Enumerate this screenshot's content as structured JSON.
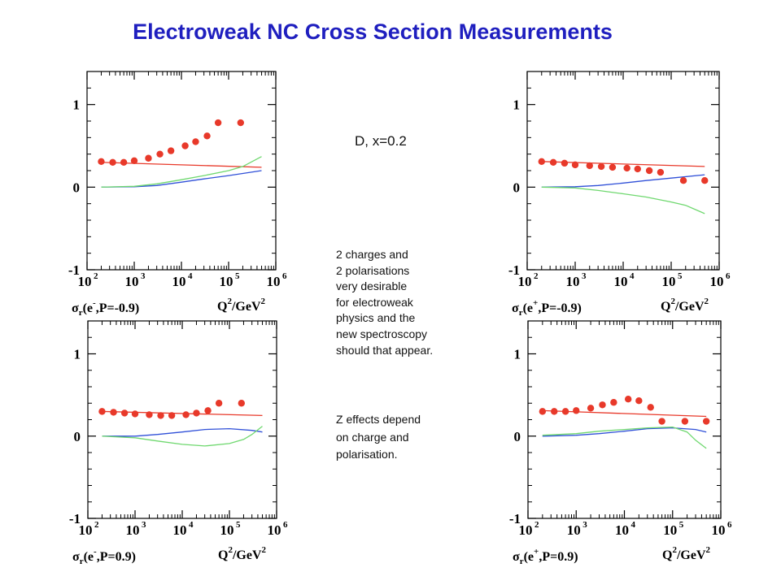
{
  "page": {
    "title": "Electroweak NC Cross Section Measurements",
    "title_color": "#1f1fbf",
    "subtitle": "D, x=0.2",
    "note1_lines": [
      "2 charges and",
      "2 polarisations",
      "very desirable",
      "for electroweak",
      "physics and the",
      "new spectroscopy",
      "should that appear."
    ],
    "note2_lines": [
      "Z effects depend",
      "on  charge and",
      "polarisation."
    ]
  },
  "colors": {
    "points": "#e8392a",
    "red_line": "#e8392a",
    "blue_line": "#3050d8",
    "green_line": "#6fd86f"
  },
  "chart_data": [
    {
      "type": "scatter",
      "panel": "top-left",
      "ylabel_sigma": "σ",
      "ylabel_sub": "r",
      "ylabel_lepton": "e",
      "ylabel_charge": "-",
      "ylabel_rest": ",P=-0.9)",
      "xlabel_q": "Q",
      "xlabel_sup": "2",
      "xlabel_rest": "/GeV",
      "x_scale": "log",
      "xlim": [
        100,
        1000000
      ],
      "ylim": [
        -1,
        1.4
      ],
      "x_ticks": [
        {
          "base": "10",
          "exp": "2"
        },
        {
          "base": "10",
          "exp": "3"
        },
        {
          "base": "10",
          "exp": "4"
        },
        {
          "base": "10",
          "exp": "5"
        },
        {
          "base": "10",
          "exp": "6"
        }
      ],
      "y_ticks": [
        "1",
        "0",
        "-1"
      ],
      "points": {
        "x": [
          200,
          350,
          600,
          1000,
          2000,
          3500,
          6000,
          12000,
          20000,
          35000,
          60000,
          180000
        ],
        "y": [
          0.31,
          0.3,
          0.3,
          0.32,
          0.35,
          0.4,
          0.44,
          0.5,
          0.55,
          0.62,
          0.78,
          0.78
        ]
      },
      "series": [
        {
          "color": "red",
          "x": [
            200,
            500000
          ],
          "y": [
            0.3,
            0.24
          ]
        },
        {
          "color": "blue",
          "x": [
            200,
            1000,
            3000,
            10000,
            30000,
            100000,
            500000
          ],
          "y": [
            0.0,
            0.005,
            0.02,
            0.06,
            0.1,
            0.14,
            0.2
          ]
        },
        {
          "color": "green",
          "x": [
            200,
            1000,
            3000,
            10000,
            30000,
            100000,
            200000,
            500000
          ],
          "y": [
            0.0,
            0.01,
            0.04,
            0.09,
            0.14,
            0.2,
            0.25,
            0.37
          ]
        }
      ]
    },
    {
      "type": "scatter",
      "panel": "top-right",
      "ylabel_sigma": "σ",
      "ylabel_sub": "r",
      "ylabel_lepton": "e",
      "ylabel_charge": "+",
      "ylabel_rest": ",P=-0.9)",
      "xlabel_q": "Q",
      "xlabel_sup": "2",
      "xlabel_rest": "/GeV",
      "x_scale": "log",
      "xlim": [
        100,
        1000000
      ],
      "ylim": [
        -1,
        1.4
      ],
      "x_ticks": [
        {
          "base": "10",
          "exp": "2"
        },
        {
          "base": "10",
          "exp": "3"
        },
        {
          "base": "10",
          "exp": "4"
        },
        {
          "base": "10",
          "exp": "5"
        },
        {
          "base": "10",
          "exp": "6"
        }
      ],
      "y_ticks": [
        "1",
        "0",
        "-1"
      ],
      "points": {
        "x": [
          200,
          350,
          600,
          1000,
          2000,
          3500,
          6000,
          12000,
          20000,
          35000,
          60000,
          180000,
          500000
        ],
        "y": [
          0.31,
          0.3,
          0.29,
          0.27,
          0.26,
          0.25,
          0.24,
          0.23,
          0.22,
          0.2,
          0.18,
          0.08,
          0.08
        ]
      },
      "series": [
        {
          "color": "red",
          "x": [
            200,
            500000
          ],
          "y": [
            0.31,
            0.25
          ]
        },
        {
          "color": "blue",
          "x": [
            200,
            1000,
            3000,
            10000,
            30000,
            100000,
            500000
          ],
          "y": [
            0.0,
            0.005,
            0.02,
            0.05,
            0.08,
            0.11,
            0.15
          ]
        },
        {
          "color": "green",
          "x": [
            200,
            1000,
            3000,
            10000,
            30000,
            100000,
            200000,
            500000
          ],
          "y": [
            0.0,
            -0.01,
            -0.04,
            -0.08,
            -0.12,
            -0.18,
            -0.22,
            -0.32
          ]
        }
      ]
    },
    {
      "type": "scatter",
      "panel": "bottom-left",
      "ylabel_sigma": "σ",
      "ylabel_sub": "r",
      "ylabel_lepton": "e",
      "ylabel_charge": "-",
      "ylabel_rest": ",P=0.9)",
      "xlabel_q": "Q",
      "xlabel_sup": "2",
      "xlabel_rest": "/GeV",
      "x_scale": "log",
      "xlim": [
        100,
        1000000
      ],
      "ylim": [
        -1,
        1.4
      ],
      "x_ticks": [
        {
          "base": "10",
          "exp": "2"
        },
        {
          "base": "10",
          "exp": "3"
        },
        {
          "base": "10",
          "exp": "4"
        },
        {
          "base": "10",
          "exp": "5"
        },
        {
          "base": "10",
          "exp": "6"
        }
      ],
      "y_ticks": [
        "1",
        "0",
        "-1"
      ],
      "points": {
        "x": [
          200,
          350,
          600,
          1000,
          2000,
          3500,
          6000,
          12000,
          20000,
          35000,
          60000,
          180000
        ],
        "y": [
          0.3,
          0.29,
          0.28,
          0.27,
          0.26,
          0.25,
          0.25,
          0.26,
          0.28,
          0.31,
          0.4,
          0.4
        ]
      },
      "series": [
        {
          "color": "red",
          "x": [
            200,
            500000
          ],
          "y": [
            0.3,
            0.25
          ]
        },
        {
          "color": "blue",
          "x": [
            200,
            1000,
            3000,
            10000,
            30000,
            100000,
            300000,
            500000
          ],
          "y": [
            0.0,
            0.0,
            0.02,
            0.05,
            0.08,
            0.09,
            0.07,
            0.05
          ]
        },
        {
          "color": "green",
          "x": [
            200,
            1000,
            3000,
            10000,
            30000,
            100000,
            200000,
            300000,
            500000
          ],
          "y": [
            0.0,
            -0.02,
            -0.06,
            -0.1,
            -0.12,
            -0.09,
            -0.04,
            0.02,
            0.12
          ]
        }
      ]
    },
    {
      "type": "scatter",
      "panel": "bottom-right",
      "ylabel_sigma": "σ",
      "ylabel_sub": "r",
      "ylabel_lepton": "e",
      "ylabel_charge": "+",
      "ylabel_rest": ",P=0.9)",
      "xlabel_q": "Q",
      "xlabel_sup": "2",
      "xlabel_rest": "/GeV",
      "x_scale": "log",
      "xlim": [
        100,
        1000000
      ],
      "ylim": [
        -1,
        1.4
      ],
      "x_ticks": [
        {
          "base": "10",
          "exp": "2"
        },
        {
          "base": "10",
          "exp": "3"
        },
        {
          "base": "10",
          "exp": "4"
        },
        {
          "base": "10",
          "exp": "5"
        },
        {
          "base": "10",
          "exp": "6"
        }
      ],
      "y_ticks": [
        "1",
        "0",
        "-1"
      ],
      "points": {
        "x": [
          200,
          350,
          600,
          1000,
          2000,
          3500,
          6000,
          12000,
          20000,
          35000,
          60000,
          180000,
          500000
        ],
        "y": [
          0.3,
          0.3,
          0.3,
          0.31,
          0.34,
          0.38,
          0.41,
          0.45,
          0.43,
          0.35,
          0.18,
          0.18,
          0.18
        ]
      },
      "series": [
        {
          "color": "red",
          "x": [
            200,
            500000
          ],
          "y": [
            0.31,
            0.24
          ]
        },
        {
          "color": "blue",
          "x": [
            200,
            1000,
            3000,
            10000,
            30000,
            100000,
            300000,
            500000
          ],
          "y": [
            0.0,
            0.01,
            0.03,
            0.06,
            0.09,
            0.1,
            0.08,
            0.05
          ]
        },
        {
          "color": "green",
          "x": [
            200,
            1000,
            3000,
            10000,
            30000,
            100000,
            200000,
            300000,
            500000
          ],
          "y": [
            0.01,
            0.03,
            0.06,
            0.08,
            0.1,
            0.11,
            0.05,
            -0.05,
            -0.15
          ]
        }
      ]
    }
  ]
}
